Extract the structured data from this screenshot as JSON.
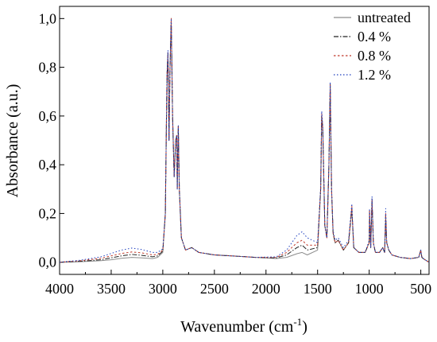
{
  "chart_data": {
    "type": "line",
    "xlabel": "Wavenumber (cm",
    "xlabel_sup": "-1",
    "xlabel_tail": ")",
    "ylabel": "Absorbance (a.u.)",
    "xlim": [
      4000,
      420
    ],
    "ylim": [
      -0.05,
      1.05
    ],
    "x_reversed": true,
    "x_ticks": [
      4000,
      3500,
      3000,
      2500,
      2000,
      1500,
      1000,
      500
    ],
    "x_tick_labels": [
      "4000",
      "3500",
      "3000",
      "2500",
      "2000",
      "1500",
      "1000",
      "500"
    ],
    "y_ticks": [
      0.0,
      0.2,
      0.4,
      0.6,
      0.8,
      1.0
    ],
    "y_tick_labels": [
      "0,0",
      "0,2",
      "0,4",
      "0,6",
      "0,8",
      "1,0"
    ],
    "legend_position": "top-right",
    "grid": false,
    "series": [
      {
        "name": "untreated",
        "color": "#8c8c8c",
        "dash": "",
        "points": [
          [
            4000,
            0.0
          ],
          [
            3800,
            0.002
          ],
          [
            3600,
            0.006
          ],
          [
            3500,
            0.01
          ],
          [
            3400,
            0.016
          ],
          [
            3300,
            0.02
          ],
          [
            3200,
            0.018
          ],
          [
            3100,
            0.015
          ],
          [
            3050,
            0.02
          ],
          [
            3000,
            0.04
          ],
          [
            2975,
            0.2
          ],
          [
            2960,
            0.75
          ],
          [
            2950,
            0.85
          ],
          [
            2940,
            0.5
          ],
          [
            2930,
            0.8
          ],
          [
            2918,
            0.99
          ],
          [
            2905,
            0.6
          ],
          [
            2890,
            0.35
          ],
          [
            2875,
            0.5
          ],
          [
            2865,
            0.52
          ],
          [
            2860,
            0.3
          ],
          [
            2850,
            0.56
          ],
          [
            2840,
            0.3
          ],
          [
            2820,
            0.1
          ],
          [
            2780,
            0.05
          ],
          [
            2720,
            0.06
          ],
          [
            2650,
            0.04
          ],
          [
            2500,
            0.03
          ],
          [
            2300,
            0.025
          ],
          [
            2100,
            0.02
          ],
          [
            1900,
            0.015
          ],
          [
            1800,
            0.02
          ],
          [
            1700,
            0.035
          ],
          [
            1650,
            0.04
          ],
          [
            1600,
            0.03
          ],
          [
            1500,
            0.05
          ],
          [
            1470,
            0.3
          ],
          [
            1460,
            0.6
          ],
          [
            1450,
            0.55
          ],
          [
            1430,
            0.15
          ],
          [
            1410,
            0.1
          ],
          [
            1390,
            0.4
          ],
          [
            1378,
            0.72
          ],
          [
            1365,
            0.3
          ],
          [
            1350,
            0.12
          ],
          [
            1330,
            0.08
          ],
          [
            1300,
            0.09
          ],
          [
            1250,
            0.05
          ],
          [
            1200,
            0.08
          ],
          [
            1168,
            0.22
          ],
          [
            1150,
            0.06
          ],
          [
            1100,
            0.04
          ],
          [
            1040,
            0.04
          ],
          [
            1000,
            0.08
          ],
          [
            997,
            0.2
          ],
          [
            985,
            0.06
          ],
          [
            973,
            0.25
          ],
          [
            960,
            0.08
          ],
          [
            940,
            0.04
          ],
          [
            900,
            0.04
          ],
          [
            870,
            0.06
          ],
          [
            850,
            0.04
          ],
          [
            840,
            0.18
          ],
          [
            830,
            0.08
          ],
          [
            810,
            0.05
          ],
          [
            780,
            0.03
          ],
          [
            700,
            0.02
          ],
          [
            600,
            0.015
          ],
          [
            520,
            0.02
          ],
          [
            500,
            0.05
          ],
          [
            490,
            0.02
          ],
          [
            460,
            0.01
          ],
          [
            420,
            0.0
          ]
        ]
      },
      {
        "name": "0.4 %",
        "color": "#222222",
        "dash": "6 2 1.5 2",
        "points": [
          [
            4000,
            0.0
          ],
          [
            3800,
            0.004
          ],
          [
            3600,
            0.01
          ],
          [
            3500,
            0.018
          ],
          [
            3400,
            0.026
          ],
          [
            3300,
            0.032
          ],
          [
            3200,
            0.028
          ],
          [
            3100,
            0.022
          ],
          [
            3050,
            0.026
          ],
          [
            3000,
            0.045
          ],
          [
            2975,
            0.2
          ],
          [
            2960,
            0.76
          ],
          [
            2950,
            0.86
          ],
          [
            2940,
            0.5
          ],
          [
            2930,
            0.8
          ],
          [
            2918,
            1.0
          ],
          [
            2905,
            0.6
          ],
          [
            2890,
            0.35
          ],
          [
            2875,
            0.5
          ],
          [
            2865,
            0.52
          ],
          [
            2860,
            0.3
          ],
          [
            2850,
            0.56
          ],
          [
            2840,
            0.3
          ],
          [
            2820,
            0.1
          ],
          [
            2780,
            0.05
          ],
          [
            2720,
            0.06
          ],
          [
            2650,
            0.04
          ],
          [
            2500,
            0.03
          ],
          [
            2300,
            0.025
          ],
          [
            2100,
            0.02
          ],
          [
            1900,
            0.018
          ],
          [
            1800,
            0.03
          ],
          [
            1700,
            0.06
          ],
          [
            1650,
            0.07
          ],
          [
            1600,
            0.05
          ],
          [
            1500,
            0.06
          ],
          [
            1470,
            0.3
          ],
          [
            1460,
            0.6
          ],
          [
            1450,
            0.55
          ],
          [
            1430,
            0.15
          ],
          [
            1410,
            0.1
          ],
          [
            1390,
            0.4
          ],
          [
            1378,
            0.73
          ],
          [
            1365,
            0.3
          ],
          [
            1350,
            0.12
          ],
          [
            1330,
            0.08
          ],
          [
            1300,
            0.09
          ],
          [
            1250,
            0.05
          ],
          [
            1200,
            0.08
          ],
          [
            1168,
            0.22
          ],
          [
            1150,
            0.06
          ],
          [
            1100,
            0.04
          ],
          [
            1040,
            0.04
          ],
          [
            1000,
            0.08
          ],
          [
            997,
            0.21
          ],
          [
            985,
            0.06
          ],
          [
            973,
            0.26
          ],
          [
            960,
            0.08
          ],
          [
            940,
            0.04
          ],
          [
            900,
            0.04
          ],
          [
            870,
            0.06
          ],
          [
            850,
            0.04
          ],
          [
            840,
            0.19
          ],
          [
            830,
            0.08
          ],
          [
            810,
            0.05
          ],
          [
            780,
            0.03
          ],
          [
            700,
            0.02
          ],
          [
            600,
            0.015
          ],
          [
            520,
            0.02
          ],
          [
            500,
            0.05
          ],
          [
            490,
            0.02
          ],
          [
            460,
            0.01
          ],
          [
            420,
            0.0
          ]
        ]
      },
      {
        "name": "0.8 %",
        "color": "#c0392b",
        "dash": "2.5 2.5",
        "points": [
          [
            4000,
            0.0
          ],
          [
            3800,
            0.006
          ],
          [
            3600,
            0.016
          ],
          [
            3500,
            0.026
          ],
          [
            3400,
            0.036
          ],
          [
            3300,
            0.042
          ],
          [
            3200,
            0.038
          ],
          [
            3100,
            0.03
          ],
          [
            3050,
            0.032
          ],
          [
            3000,
            0.05
          ],
          [
            2975,
            0.2
          ],
          [
            2960,
            0.76
          ],
          [
            2950,
            0.86
          ],
          [
            2940,
            0.5
          ],
          [
            2930,
            0.8
          ],
          [
            2918,
            1.0
          ],
          [
            2905,
            0.6
          ],
          [
            2890,
            0.35
          ],
          [
            2875,
            0.5
          ],
          [
            2865,
            0.52
          ],
          [
            2860,
            0.3
          ],
          [
            2850,
            0.56
          ],
          [
            2840,
            0.3
          ],
          [
            2820,
            0.1
          ],
          [
            2780,
            0.05
          ],
          [
            2720,
            0.06
          ],
          [
            2650,
            0.04
          ],
          [
            2500,
            0.03
          ],
          [
            2300,
            0.025
          ],
          [
            2100,
            0.02
          ],
          [
            1900,
            0.02
          ],
          [
            1800,
            0.04
          ],
          [
            1700,
            0.08
          ],
          [
            1650,
            0.09
          ],
          [
            1600,
            0.07
          ],
          [
            1500,
            0.07
          ],
          [
            1470,
            0.3
          ],
          [
            1460,
            0.61
          ],
          [
            1450,
            0.55
          ],
          [
            1430,
            0.15
          ],
          [
            1410,
            0.1
          ],
          [
            1390,
            0.4
          ],
          [
            1378,
            0.73
          ],
          [
            1365,
            0.3
          ],
          [
            1350,
            0.12
          ],
          [
            1330,
            0.08
          ],
          [
            1300,
            0.09
          ],
          [
            1250,
            0.05
          ],
          [
            1200,
            0.08
          ],
          [
            1168,
            0.23
          ],
          [
            1150,
            0.06
          ],
          [
            1100,
            0.04
          ],
          [
            1040,
            0.04
          ],
          [
            1000,
            0.08
          ],
          [
            997,
            0.21
          ],
          [
            985,
            0.06
          ],
          [
            973,
            0.26
          ],
          [
            960,
            0.08
          ],
          [
            940,
            0.04
          ],
          [
            900,
            0.04
          ],
          [
            870,
            0.06
          ],
          [
            850,
            0.04
          ],
          [
            840,
            0.2
          ],
          [
            830,
            0.08
          ],
          [
            810,
            0.05
          ],
          [
            780,
            0.03
          ],
          [
            700,
            0.02
          ],
          [
            600,
            0.015
          ],
          [
            520,
            0.02
          ],
          [
            500,
            0.05
          ],
          [
            490,
            0.02
          ],
          [
            460,
            0.01
          ],
          [
            420,
            0.0
          ]
        ]
      },
      {
        "name": "1.2 %",
        "color": "#1f3fbf",
        "dash": "1.5 2.5",
        "points": [
          [
            4000,
            0.0
          ],
          [
            3800,
            0.008
          ],
          [
            3600,
            0.022
          ],
          [
            3500,
            0.036
          ],
          [
            3400,
            0.05
          ],
          [
            3300,
            0.058
          ],
          [
            3200,
            0.052
          ],
          [
            3100,
            0.04
          ],
          [
            3050,
            0.04
          ],
          [
            3000,
            0.055
          ],
          [
            2975,
            0.2
          ],
          [
            2960,
            0.77
          ],
          [
            2950,
            0.87
          ],
          [
            2940,
            0.5
          ],
          [
            2930,
            0.81
          ],
          [
            2918,
            1.0
          ],
          [
            2905,
            0.6
          ],
          [
            2890,
            0.35
          ],
          [
            2875,
            0.5
          ],
          [
            2865,
            0.52
          ],
          [
            2860,
            0.3
          ],
          [
            2850,
            0.56
          ],
          [
            2840,
            0.3
          ],
          [
            2820,
            0.1
          ],
          [
            2780,
            0.05
          ],
          [
            2720,
            0.06
          ],
          [
            2650,
            0.04
          ],
          [
            2500,
            0.03
          ],
          [
            2300,
            0.025
          ],
          [
            2100,
            0.02
          ],
          [
            1900,
            0.022
          ],
          [
            1800,
            0.05
          ],
          [
            1700,
            0.11
          ],
          [
            1650,
            0.125
          ],
          [
            1600,
            0.1
          ],
          [
            1500,
            0.08
          ],
          [
            1470,
            0.31
          ],
          [
            1460,
            0.62
          ],
          [
            1450,
            0.56
          ],
          [
            1430,
            0.15
          ],
          [
            1410,
            0.1
          ],
          [
            1390,
            0.41
          ],
          [
            1378,
            0.74
          ],
          [
            1365,
            0.3
          ],
          [
            1350,
            0.13
          ],
          [
            1330,
            0.09
          ],
          [
            1300,
            0.1
          ],
          [
            1250,
            0.06
          ],
          [
            1200,
            0.09
          ],
          [
            1168,
            0.24
          ],
          [
            1150,
            0.06
          ],
          [
            1100,
            0.04
          ],
          [
            1040,
            0.04
          ],
          [
            1000,
            0.09
          ],
          [
            997,
            0.22
          ],
          [
            985,
            0.06
          ],
          [
            973,
            0.27
          ],
          [
            960,
            0.08
          ],
          [
            940,
            0.04
          ],
          [
            900,
            0.04
          ],
          [
            870,
            0.06
          ],
          [
            850,
            0.04
          ],
          [
            840,
            0.22
          ],
          [
            830,
            0.08
          ],
          [
            810,
            0.05
          ],
          [
            780,
            0.03
          ],
          [
            700,
            0.02
          ],
          [
            600,
            0.015
          ],
          [
            520,
            0.02
          ],
          [
            500,
            0.05
          ],
          [
            490,
            0.02
          ],
          [
            460,
            0.01
          ],
          [
            420,
            0.0
          ]
        ]
      }
    ]
  }
}
